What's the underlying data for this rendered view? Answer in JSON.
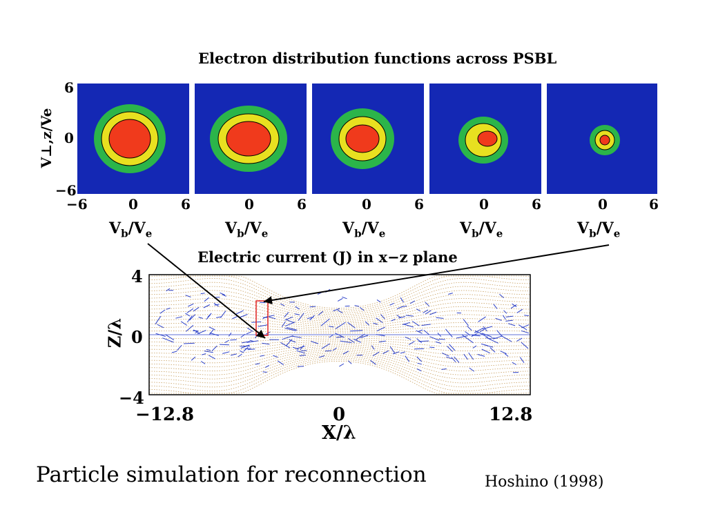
{
  "slide": {
    "top_title": "Electron distribution functions across PSBL",
    "bottom_title": "Electric current (J) in x−z plane",
    "caption": "Particle simulation for reconnection",
    "credit": "Hoshino (1998)"
  },
  "distribution_panels": {
    "count": 5,
    "y_axis_label": "V⊥,z/Ve",
    "y_ticks": [
      "6",
      "0",
      "−6"
    ],
    "x_ticks": [
      "−6",
      "0",
      "6"
    ],
    "x_label_main": "V",
    "x_label_sub": "b",
    "x_label_tail": "/V",
    "x_label_tail_sub": "e",
    "colors": {
      "background": "#1428b4",
      "outer": "#2bb54a",
      "middle": "#e8e020",
      "core": "#f03a1c"
    }
  },
  "current_plot": {
    "y_axis_label": "Z/λ",
    "y_ticks": [
      "4",
      "0",
      "−4"
    ],
    "x_ticks": [
      "−12.8",
      "0",
      "12.8"
    ],
    "x_axis_label": "X/λ",
    "colors": {
      "arrows": "#2a3fc8",
      "field_lines": "#c8a060",
      "highlight_box": "#e02020"
    }
  }
}
